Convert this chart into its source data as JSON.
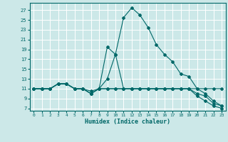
{
  "title": "",
  "xlabel": "Humidex (Indice chaleur)",
  "bg_color": "#cce8e8",
  "grid_color": "#ffffff",
  "line_color": "#006868",
  "xlim": [
    -0.5,
    23.5
  ],
  "ylim": [
    6.5,
    28.5
  ],
  "yticks": [
    7,
    9,
    11,
    13,
    15,
    17,
    19,
    21,
    23,
    25,
    27
  ],
  "xticks": [
    0,
    1,
    2,
    3,
    4,
    5,
    6,
    7,
    8,
    9,
    10,
    11,
    12,
    13,
    14,
    15,
    16,
    17,
    18,
    19,
    20,
    21,
    22,
    23
  ],
  "series": [
    {
      "x": [
        0,
        1,
        2,
        3,
        4,
        5,
        6,
        7,
        8,
        9,
        10,
        11,
        12,
        13,
        14,
        15,
        16,
        17,
        18,
        19,
        20,
        21,
        22,
        23
      ],
      "y": [
        11,
        11,
        11,
        12,
        12,
        11,
        11,
        10,
        11,
        13,
        18,
        25.5,
        27.5,
        26,
        23.5,
        20,
        18,
        16.5,
        14,
        13.5,
        11,
        10,
        8.5,
        7.5
      ]
    },
    {
      "x": [
        0,
        1,
        2,
        3,
        4,
        5,
        6,
        7,
        8,
        9,
        10,
        11,
        12,
        13,
        14,
        15,
        16,
        17,
        18,
        19,
        20,
        21,
        22,
        23
      ],
      "y": [
        11,
        11,
        11,
        12,
        12,
        11,
        11,
        10,
        11,
        19.5,
        18,
        11,
        11,
        11,
        11,
        11,
        11,
        11,
        11,
        11,
        11,
        11,
        11,
        11
      ]
    },
    {
      "x": [
        0,
        1,
        2,
        3,
        4,
        5,
        6,
        7,
        8,
        9,
        10,
        11,
        12,
        13,
        14,
        15,
        16,
        17,
        18,
        19,
        20,
        21,
        22,
        23
      ],
      "y": [
        11,
        11,
        11,
        12,
        12,
        11,
        11,
        10.5,
        11,
        11,
        11,
        11,
        11,
        11,
        11,
        11,
        11,
        11,
        11,
        11,
        10,
        9.5,
        8,
        7.5
      ]
    },
    {
      "x": [
        0,
        1,
        2,
        3,
        4,
        5,
        6,
        7,
        8,
        9,
        10,
        11,
        12,
        13,
        14,
        15,
        16,
        17,
        18,
        19,
        20,
        21,
        22,
        23
      ],
      "y": [
        11,
        11,
        11,
        12,
        12,
        11,
        11,
        10,
        11,
        11,
        11,
        11,
        11,
        11,
        11,
        11,
        11,
        11,
        11,
        11,
        9.5,
        8.5,
        7.5,
        7
      ]
    }
  ]
}
